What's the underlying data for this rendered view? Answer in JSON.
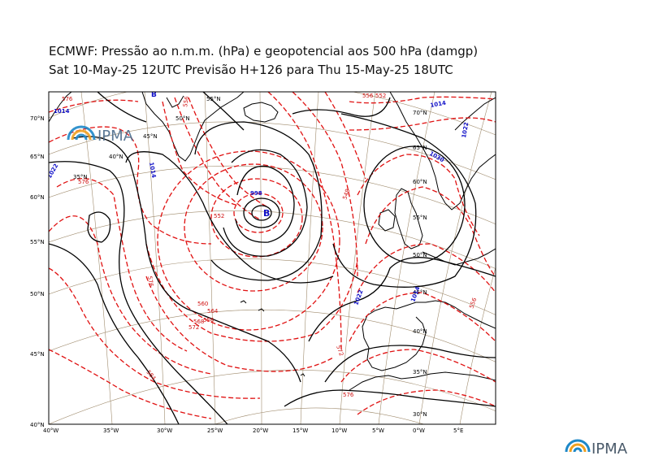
{
  "header": {
    "title_line1": "ECMWF:  Pressão ao n.m.m. (hPa) e geopotencial aos 500 hPa (damgp)",
    "title_line2": "Sat 10-May-25 12UTC Previsão H+126 para Thu 15-May-25 18UTC"
  },
  "map": {
    "bottom_axis_labels": [
      "40°W",
      "35°W",
      "30°W",
      "25°W",
      "20°W",
      "15°W",
      "10°W",
      "5°W",
      "0°W",
      "5°E"
    ],
    "left_axis_labels": [
      "70°N",
      "65°N",
      "60°N",
      "55°N",
      "50°N",
      "45°N",
      "40°N"
    ],
    "interior_grid_labels": [
      "55°N",
      "50°N",
      "45°N",
      "40°N",
      "35°N",
      "70°N",
      "65°N",
      "60°N",
      "55°N",
      "50°N",
      "45°N",
      "40°N",
      "35°N",
      "30°N"
    ],
    "isobar_labels": [
      "1014",
      "1014",
      "1022",
      "998",
      "1022",
      "1030",
      "1014",
      "1022",
      "1014"
    ],
    "height_labels": [
      "576",
      "576",
      "556",
      "552",
      "564",
      "568",
      "572",
      "576",
      "584",
      "560",
      "556",
      "548",
      "556",
      "572",
      "576",
      "552",
      "556"
    ],
    "low_marker": "B",
    "colors": {
      "isobar": "#000000",
      "isobar_label": "#1010c8",
      "geopotential": "#e01010",
      "graticule": "#a08c6e",
      "coast": "#000000"
    }
  },
  "logos": {
    "inset_logo_text": "IPMA",
    "footer_logo_text": "IPMA"
  }
}
